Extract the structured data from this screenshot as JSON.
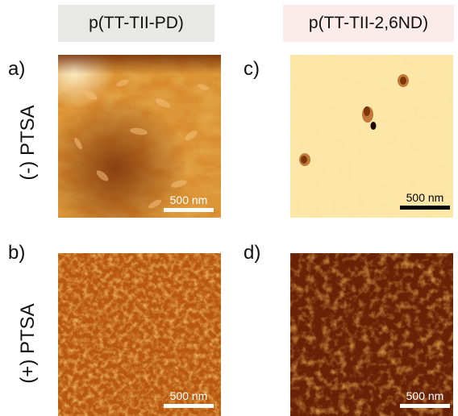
{
  "columns": [
    {
      "title": "p(TT-TII-PD)",
      "bg": "#e8e8e6"
    },
    {
      "title": "p(TT-TII-2,6ND)",
      "bg": "#fbeceb"
    }
  ],
  "rows": [
    {
      "label": "(-) PTSA"
    },
    {
      "label": "(+) PTSA"
    }
  ],
  "panels": [
    {
      "letter": "a)",
      "scale_label": "500 nm",
      "scale_color": "#ffffff"
    },
    {
      "letter": "b)",
      "scale_label": "500 nm",
      "scale_color": "#ffffff"
    },
    {
      "letter": "c)",
      "scale_label": "500 nm",
      "scale_color": "#000000"
    },
    {
      "letter": "d)",
      "scale_label": "500 nm",
      "scale_color": "#ffffff"
    }
  ],
  "colors": {
    "afm_dark": "#5a1e04",
    "afm_mid": "#c86a12",
    "afm_light": "#ffe6b0"
  }
}
